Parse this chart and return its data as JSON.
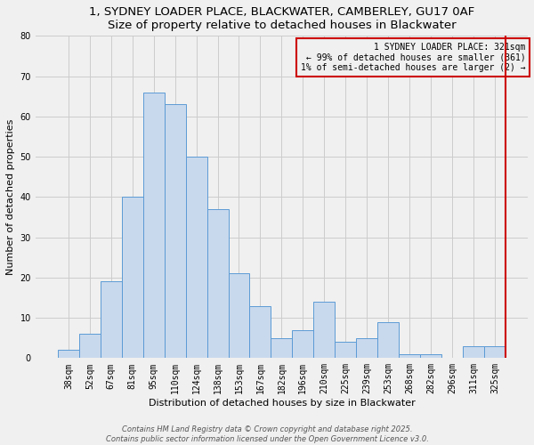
{
  "title": "1, SYDNEY LOADER PLACE, BLACKWATER, CAMBERLEY, GU17 0AF",
  "subtitle": "Size of property relative to detached houses in Blackwater",
  "xlabel": "Distribution of detached houses by size in Blackwater",
  "ylabel": "Number of detached properties",
  "bar_labels": [
    "38sqm",
    "52sqm",
    "67sqm",
    "81sqm",
    "95sqm",
    "110sqm",
    "124sqm",
    "138sqm",
    "153sqm",
    "167sqm",
    "182sqm",
    "196sqm",
    "210sqm",
    "225sqm",
    "239sqm",
    "253sqm",
    "268sqm",
    "282sqm",
    "296sqm",
    "311sqm",
    "325sqm"
  ],
  "bar_heights": [
    2,
    6,
    19,
    40,
    66,
    63,
    50,
    37,
    21,
    13,
    5,
    7,
    14,
    4,
    5,
    9,
    1,
    1,
    0,
    3,
    3
  ],
  "bar_color": "#c9d9ed",
  "bar_edge_color": "#5b9bd5",
  "ylim": [
    0,
    80
  ],
  "yticks": [
    0,
    10,
    20,
    30,
    40,
    50,
    60,
    70,
    80
  ],
  "vline_color": "#cc0000",
  "legend_title": "1 SYDNEY LOADER PLACE: 321sqm",
  "legend_line1": "← 99% of detached houses are smaller (361)",
  "legend_line2": "1% of semi-detached houses are larger (2) →",
  "footer1": "Contains HM Land Registry data © Crown copyright and database right 2025.",
  "footer2": "Contains public sector information licensed under the Open Government Licence v3.0.",
  "bg_color": "#f0f0f0",
  "grid_color": "#cccccc",
  "title_fontsize": 9.5,
  "subtitle_fontsize": 8.5,
  "axis_label_fontsize": 8,
  "tick_fontsize": 7,
  "legend_fontsize": 7,
  "footer_fontsize": 6
}
